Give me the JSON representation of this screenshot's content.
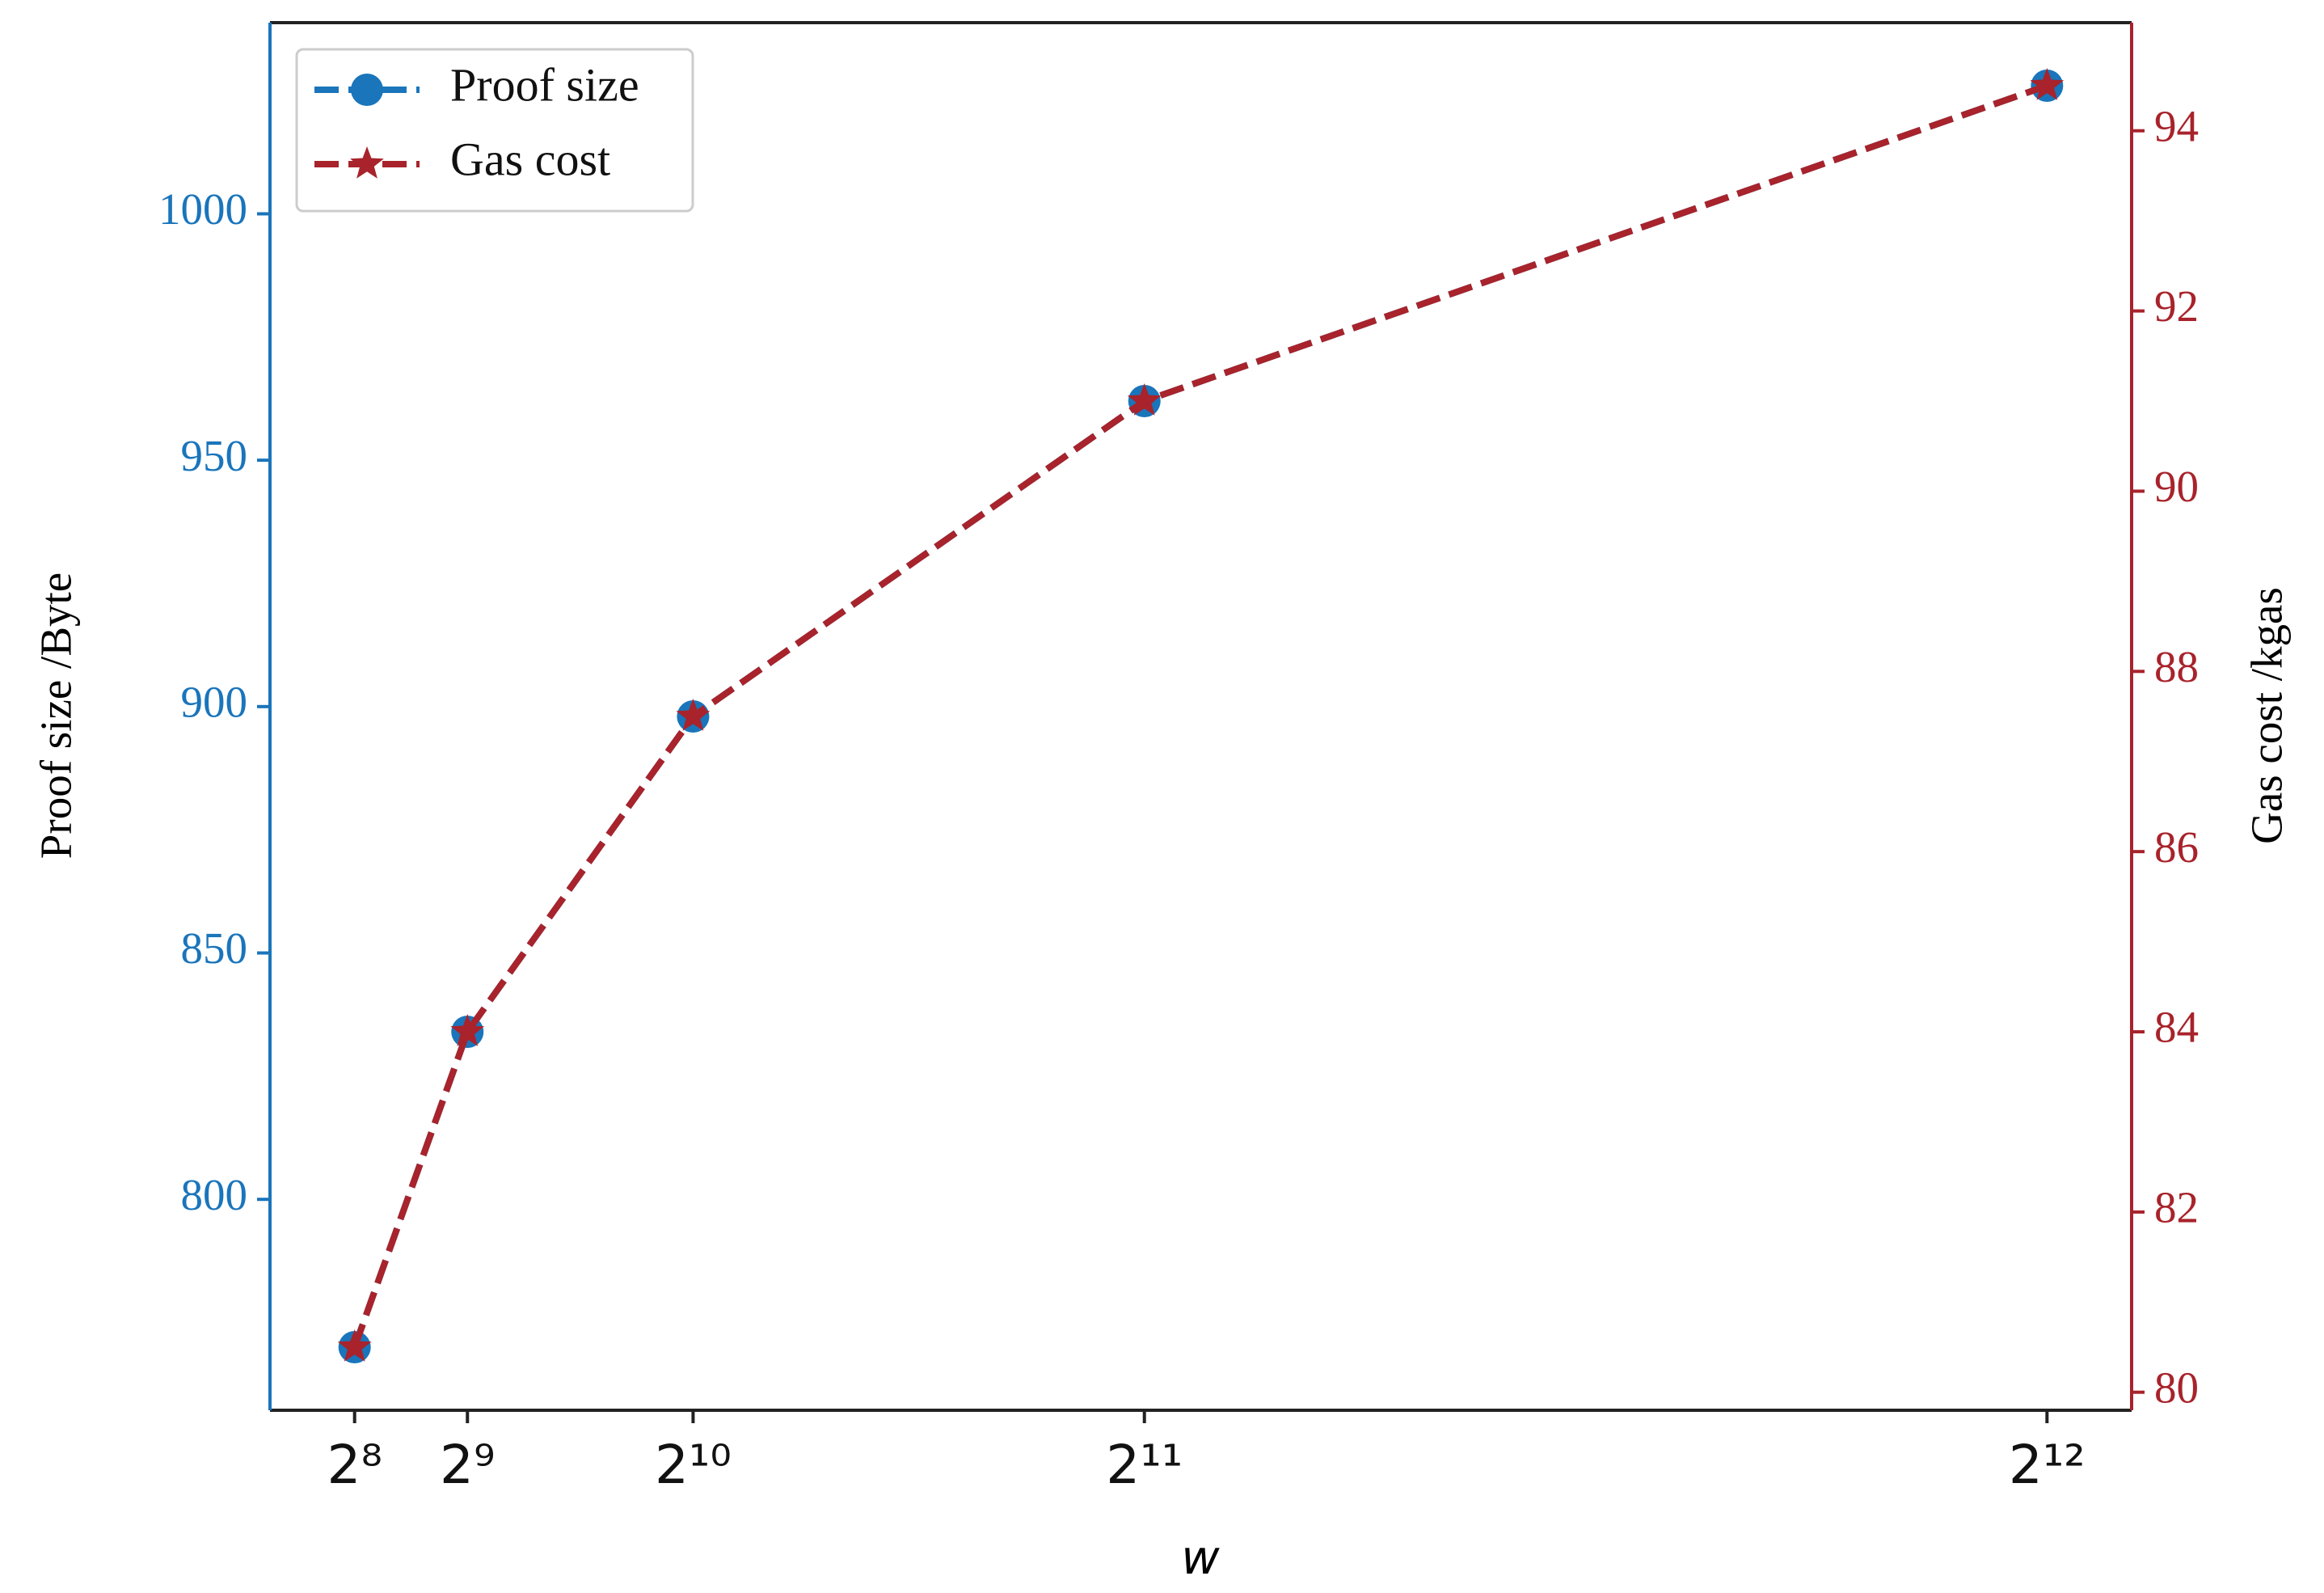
{
  "chart_data": {
    "type": "line",
    "x_label": "w",
    "y_label": "Proof size /Byte",
    "y2_label": "Gas cost /kgas",
    "x": [
      256,
      512,
      1024,
      2048,
      4096
    ],
    "xlim": [
      64,
      4288
    ],
    "xticks": [
      {
        "value": 256,
        "label": "2⁸"
      },
      {
        "value": 512,
        "label": "2⁹"
      },
      {
        "value": 1024,
        "label": "2¹⁰"
      },
      {
        "value": 2048,
        "label": "2¹¹"
      },
      {
        "value": 4096,
        "label": "2¹²"
      }
    ],
    "ylim": [
      757.2,
      1038.8
    ],
    "yticks": [
      800,
      850,
      900,
      950,
      1000
    ],
    "y2lim": [
      79.8,
      95.2
    ],
    "y2ticks": [
      80,
      82,
      84,
      86,
      88,
      90,
      92,
      94
    ],
    "y_color": "#1a75bb",
    "y2_color": "#a8232b",
    "grid": false,
    "legend": "upper left",
    "series": [
      {
        "name": "Proof size",
        "color": "#1a75bb",
        "marker": "circle",
        "line_style": "dashed",
        "axis": "y",
        "values": [
          770,
          834,
          898,
          962,
          1026
        ]
      },
      {
        "name": "Gas cost",
        "color": "#a8232b",
        "marker": "star",
        "line_style": "dashed",
        "axis": "y2",
        "values": [
          80.5,
          84,
          87.5,
          91,
          94.5
        ]
      }
    ]
  }
}
